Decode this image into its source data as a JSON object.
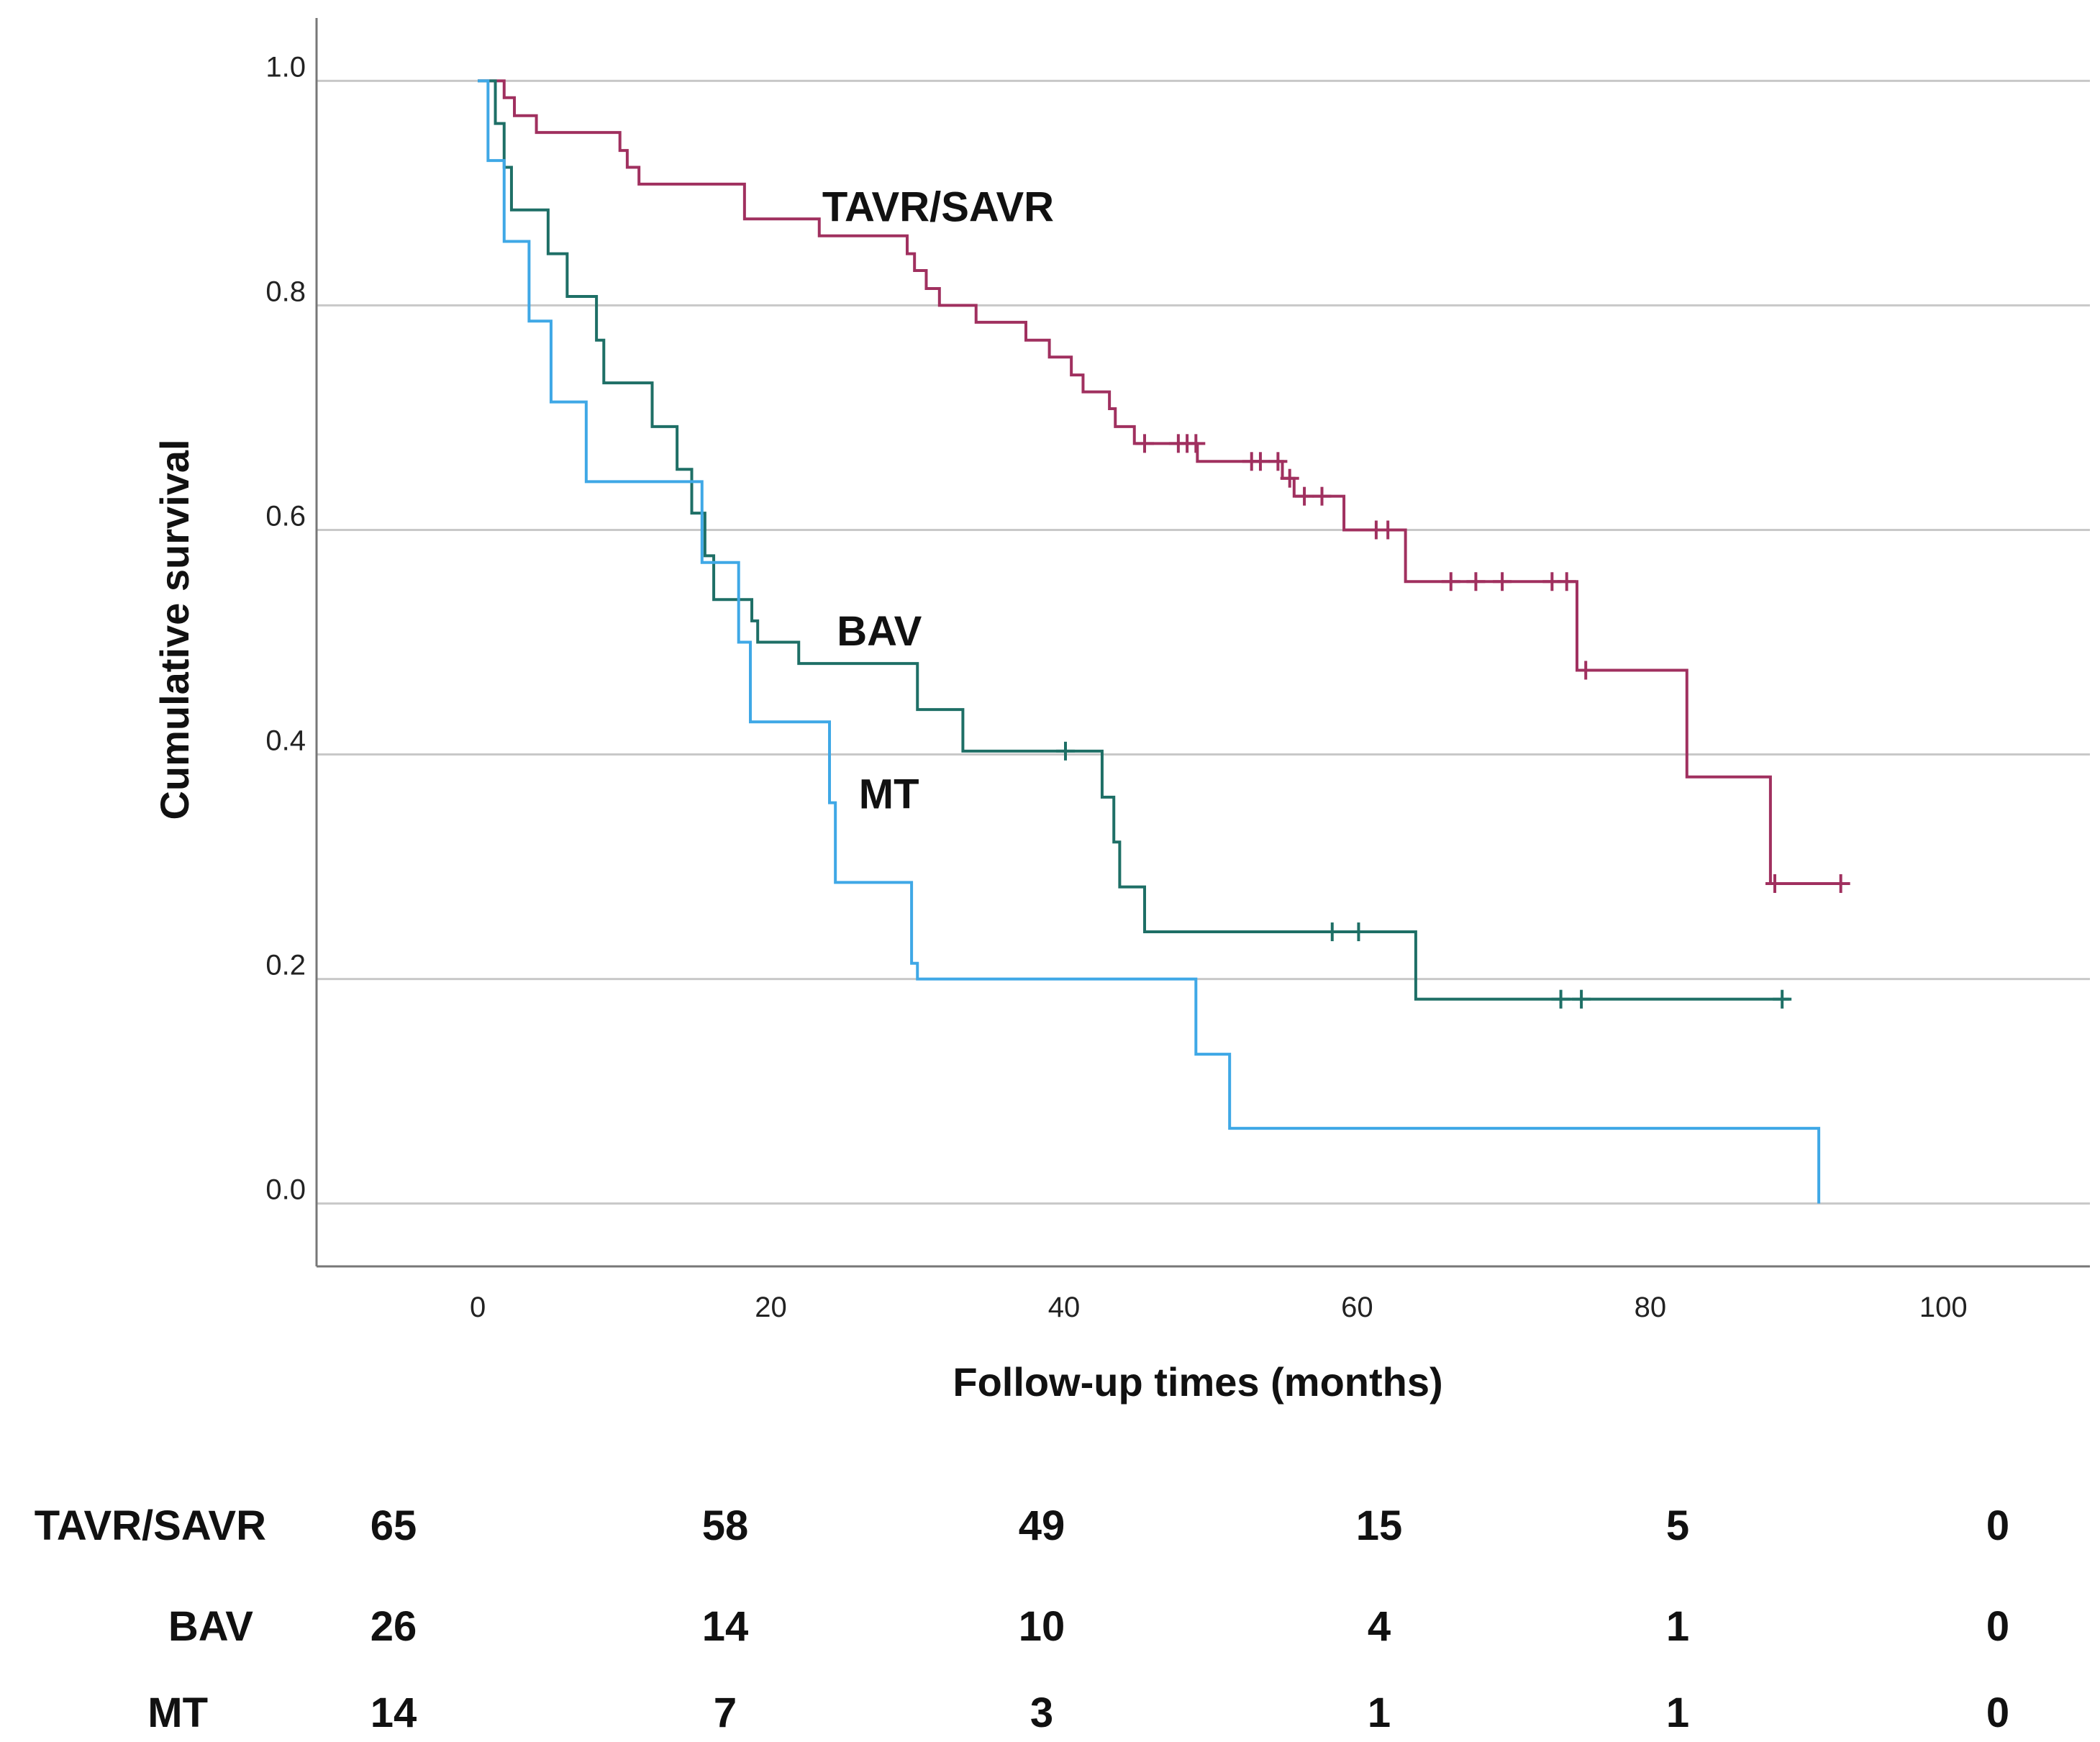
{
  "chart_data": {
    "type": "line",
    "subtype": "kaplan-meier step",
    "title": "",
    "xlabel": "Follow-up times (months)",
    "ylabel": "Cumulative survival",
    "xlim": [
      -11,
      110
    ],
    "ylim": [
      -0.056,
      1.056
    ],
    "x_ticks": [
      "0",
      "20",
      "40",
      "60",
      "80",
      "100"
    ],
    "y_ticks": [
      "0.0",
      "0.2",
      "0.4",
      "0.6",
      "0.8",
      "1.0"
    ],
    "grid": "horizontal",
    "curve_labels": [
      {
        "text": "TAVR/SAVR",
        "x": 23.5,
        "y": 0.875
      },
      {
        "text": "BAV",
        "x": 24.5,
        "y": 0.497
      },
      {
        "text": "MT",
        "x": 26,
        "y": 0.352
      }
    ],
    "colors": {
      "TAVR/SAVR": "#a0305f",
      "BAV": "#1e6f66",
      "MT": "#3fa8e6",
      "grid": "#c8c8c8",
      "axis": "#777777"
    },
    "series": [
      {
        "name": "TAVR/SAVR",
        "color": "#a0305f",
        "steps": [
          [
            0,
            1.0
          ],
          [
            1.8,
            0.985
          ],
          [
            2.5,
            0.969
          ],
          [
            4,
            0.954
          ],
          [
            9.7,
            0.938
          ],
          [
            10.2,
            0.923
          ],
          [
            11,
            0.908
          ],
          [
            11.8,
            0.908
          ],
          [
            18.2,
            0.877
          ],
          [
            23.3,
            0.862
          ],
          [
            29.3,
            0.846
          ],
          [
            29.8,
            0.831
          ],
          [
            30.6,
            0.815
          ],
          [
            31.5,
            0.8
          ],
          [
            34,
            0.785
          ],
          [
            37.4,
            0.769
          ],
          [
            39,
            0.754
          ],
          [
            40.5,
            0.738
          ],
          [
            41.3,
            0.723
          ],
          [
            43.1,
            0.708
          ],
          [
            43.5,
            0.692
          ],
          [
            44.8,
            0.677
          ],
          [
            49,
            0.677
          ],
          [
            49.1,
            0.661
          ],
          [
            54.9,
            0.646
          ],
          [
            55.7,
            0.63
          ],
          [
            59.1,
            0.6
          ],
          [
            63.3,
            0.554
          ],
          [
            75,
            0.475
          ],
          [
            82.5,
            0.38
          ],
          [
            88.2,
            0.285
          ],
          [
            93.5,
            0.285
          ]
        ],
        "censored": [
          [
            45.5,
            0.677
          ],
          [
            47.8,
            0.677
          ],
          [
            48.4,
            0.677
          ],
          [
            49,
            0.677
          ],
          [
            52.8,
            0.661
          ],
          [
            53.4,
            0.661
          ],
          [
            54.6,
            0.661
          ],
          [
            55.4,
            0.646
          ],
          [
            56.4,
            0.63
          ],
          [
            57.6,
            0.63
          ],
          [
            61.3,
            0.6
          ],
          [
            62.1,
            0.6
          ],
          [
            66.4,
            0.554
          ],
          [
            68.1,
            0.554
          ],
          [
            69.9,
            0.554
          ],
          [
            73.3,
            0.554
          ],
          [
            74.3,
            0.554
          ],
          [
            75.6,
            0.475
          ],
          [
            88.5,
            0.285
          ],
          [
            93,
            0.285
          ]
        ]
      },
      {
        "name": "BAV",
        "color": "#1e6f66",
        "steps": [
          [
            0,
            1.0
          ],
          [
            1.2,
            0.962
          ],
          [
            1.8,
            0.923
          ],
          [
            2.3,
            0.885
          ],
          [
            4.6,
            0.885
          ],
          [
            4.8,
            0.846
          ],
          [
            6.1,
            0.808
          ],
          [
            8.1,
            0.769
          ],
          [
            8.6,
            0.731
          ],
          [
            11.9,
            0.692
          ],
          [
            13.6,
            0.654
          ],
          [
            14.6,
            0.615
          ],
          [
            15.5,
            0.577
          ],
          [
            16.1,
            0.538
          ],
          [
            18.7,
            0.519
          ],
          [
            19.1,
            0.5
          ],
          [
            21.9,
            0.481
          ],
          [
            30,
            0.44
          ],
          [
            33.1,
            0.403
          ],
          [
            42.6,
            0.362
          ],
          [
            43.4,
            0.322
          ],
          [
            43.8,
            0.282
          ],
          [
            45.5,
            0.242
          ],
          [
            64,
            0.182
          ],
          [
            89.5,
            0.182
          ]
        ],
        "censored": [
          [
            40.1,
            0.403
          ],
          [
            58.3,
            0.242
          ],
          [
            60.1,
            0.242
          ],
          [
            73.9,
            0.182
          ],
          [
            75.3,
            0.182
          ],
          [
            89,
            0.182
          ]
        ]
      },
      {
        "name": "MT",
        "color": "#3fa8e6",
        "steps": [
          [
            0,
            1.0
          ],
          [
            0.7,
            0.929
          ],
          [
            1.8,
            0.857
          ],
          [
            3.5,
            0.786
          ],
          [
            5,
            0.714
          ],
          [
            7.4,
            0.643
          ],
          [
            15.3,
            0.571
          ],
          [
            17.8,
            0.5
          ],
          [
            18.6,
            0.429
          ],
          [
            24,
            0.357
          ],
          [
            24.4,
            0.286
          ],
          [
            29.6,
            0.214
          ],
          [
            30,
            0.2
          ],
          [
            49,
            0.133
          ],
          [
            51.3,
            0.067
          ],
          [
            91.5,
            0.0
          ]
        ],
        "censored": []
      }
    ],
    "risk_table": {
      "rows": [
        {
          "label": "TAVR/SAVR",
          "values": [
            "65",
            "58",
            "49",
            "15",
            "5",
            "0"
          ]
        },
        {
          "label": "BAV",
          "values": [
            "26",
            "14",
            "10",
            "4",
            "1",
            "0"
          ]
        },
        {
          "label": "MT",
          "values": [
            "14",
            "7",
            "3",
            "1",
            "1",
            "0"
          ]
        }
      ]
    }
  }
}
